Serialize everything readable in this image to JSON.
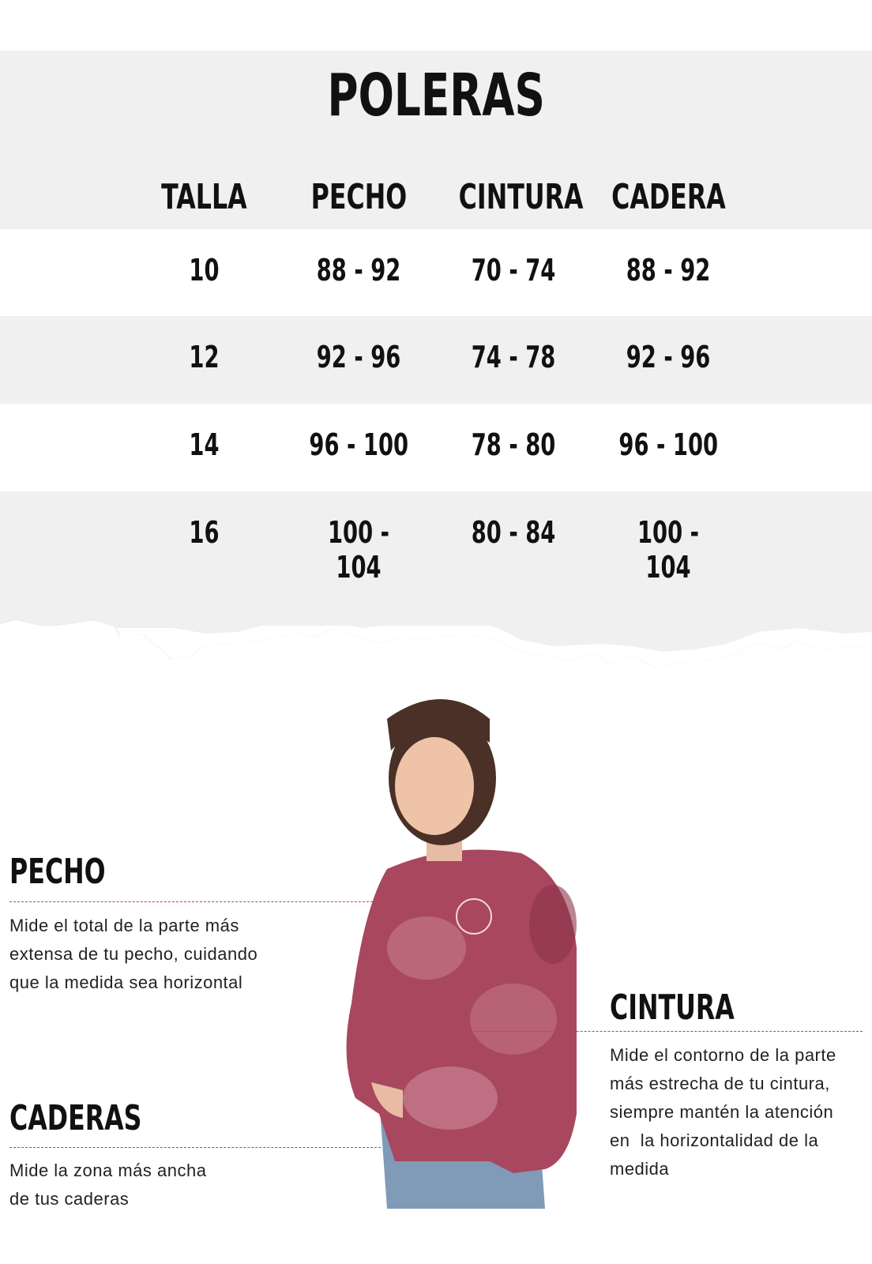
{
  "title": "POLERAS",
  "table": {
    "headers": [
      "TALLA",
      "PECHO",
      "CINTURA",
      "CADERA"
    ],
    "rows": [
      [
        "10",
        "88 - 92",
        "70 - 74",
        "88 - 92"
      ],
      [
        "12",
        "92 - 96",
        "74 - 78",
        "92 - 96"
      ],
      [
        "14",
        "96 - 100",
        "78 - 80",
        "96 - 100"
      ],
      [
        "16",
        "100 - 104",
        "80 - 84",
        "100 - 104"
      ]
    ]
  },
  "guide": {
    "pecho": {
      "label": "PECHO",
      "lines": [
        "Mide el total de la parte más",
        "extensa de tu pecho, cuidando",
        "que la medida sea horizontal"
      ]
    },
    "cintura": {
      "label": "CINTURA",
      "lines": [
        "Mide el contorno de la parte",
        "más estrecha de tu cintura,",
        "siempre mantén la atención",
        "en  la horizontalidad de la",
        "medida"
      ]
    },
    "caderas": {
      "label": "CADERAS",
      "lines": [
        "Mide la zona más ancha",
        "de tus caderas"
      ]
    }
  },
  "colors": {
    "band_gray": "#f0f0f0",
    "dash_red": "#b4474f",
    "shirt": "#a9475e"
  }
}
